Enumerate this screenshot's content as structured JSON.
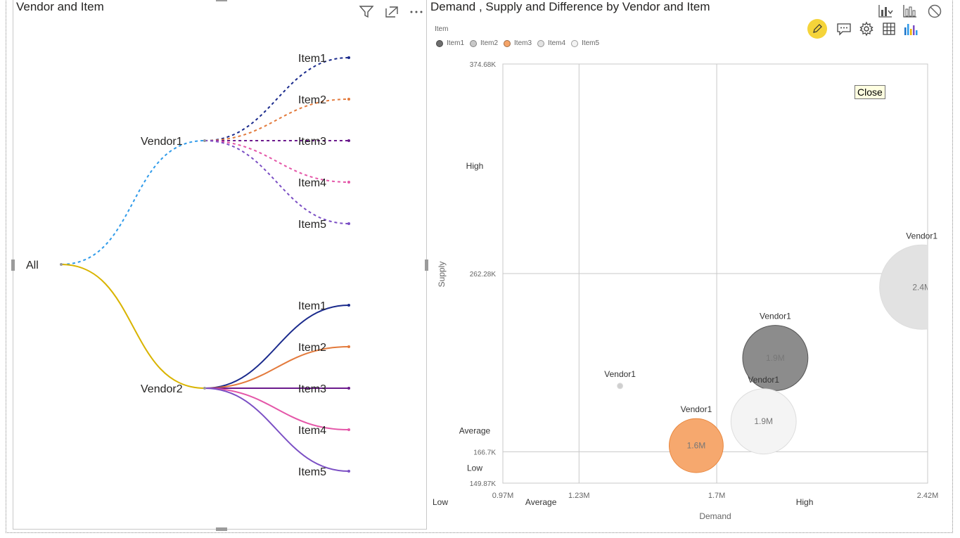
{
  "left": {
    "title": "Vendor and Item",
    "root_label": "All",
    "vendors": [
      {
        "label": "Vendor1",
        "color": "#2f9bea",
        "dashed": true,
        "items": [
          {
            "label": "Item1",
            "color": "#1a2a8c"
          },
          {
            "label": "Item2",
            "color": "#e37a3c"
          },
          {
            "label": "Item3",
            "color": "#6b1a8c"
          },
          {
            "label": "Item4",
            "color": "#e456a8"
          },
          {
            "label": "Item5",
            "color": "#7b4fc4"
          }
        ]
      },
      {
        "label": "Vendor2",
        "color": "#d9b400",
        "dashed": false,
        "items": [
          {
            "label": "Item1",
            "color": "#1a2a8c"
          },
          {
            "label": "Item2",
            "color": "#e37a3c"
          },
          {
            "label": "Item3",
            "color": "#6b1a8c"
          },
          {
            "label": "Item4",
            "color": "#e456a8"
          },
          {
            "label": "Item5",
            "color": "#7b4fc4"
          }
        ]
      }
    ],
    "icons": [
      "filter-icon",
      "focus-mode-icon",
      "more-options-icon"
    ]
  },
  "right": {
    "title": "Demand , Supply and Difference by Vendor and Item",
    "legend_title": "Item",
    "legend": [
      {
        "label": "Item1",
        "color": "#6e6e6e"
      },
      {
        "label": "Item2",
        "color": "#c8c8c8"
      },
      {
        "label": "Item3",
        "color": "#f5a468"
      },
      {
        "label": "Item4",
        "color": "#e3e3e3"
      },
      {
        "label": "Item5",
        "color": "#f3f3f3"
      }
    ],
    "tooltip": "Close",
    "toolbar_icons": [
      "drill-chart-icon",
      "column-chart-icon",
      "disable-icon"
    ],
    "edit_icons": [
      "edit-pencil-icon",
      "comment-icon",
      "settings-gear-icon",
      "table-grid-icon",
      "analytics-bars-icon"
    ]
  },
  "chart_data": {
    "type": "scatter",
    "title": "Demand , Supply and Difference by Vendor and Item",
    "xlabel": "Demand",
    "ylabel": "Supply",
    "xlim": [
      970000,
      2420000
    ],
    "ylim": [
      149870,
      374680
    ],
    "x_ticks": [
      {
        "value": 970000,
        "label": "0.97M"
      },
      {
        "value": 1230000,
        "label": "1.23M"
      },
      {
        "value": 1700000,
        "label": "1.7M"
      },
      {
        "value": 2420000,
        "label": "2.42M"
      }
    ],
    "y_ticks": [
      {
        "value": 374680,
        "label": "374.68K"
      },
      {
        "value": 262280,
        "label": "262.28K"
      },
      {
        "value": 166700,
        "label": "166.7K"
      },
      {
        "value": 149870,
        "label": "149.87K"
      }
    ],
    "x_bands": [
      {
        "label": "Low",
        "value": 970000
      },
      {
        "label": "Average",
        "value": 1100000
      },
      {
        "label": "High",
        "value": 2000000
      }
    ],
    "y_bands": [
      {
        "label": "High",
        "value": 320000
      },
      {
        "label": "Average",
        "value": 178000
      },
      {
        "label": "Low",
        "value": 158000
      }
    ],
    "points": [
      {
        "vendor": "Vendor1",
        "item": "Item1",
        "x": 1900000,
        "y": 217000,
        "size": 1900000,
        "label": "1.9M",
        "color": "#8c8c8c"
      },
      {
        "vendor": "Vendor1",
        "item": "Item2",
        "x": 1370000,
        "y": 202000,
        "size": 10000,
        "label": "",
        "color": "#cfcfcf"
      },
      {
        "vendor": "Vendor1",
        "item": "Item3",
        "x": 1630000,
        "y": 170000,
        "size": 1600000,
        "label": "1.6M",
        "color": "#f6a86e"
      },
      {
        "vendor": "Vendor1",
        "item": "Item4",
        "x": 2400000,
        "y": 255000,
        "size": 2400000,
        "label": "2.4M",
        "color": "#e2e2e2"
      },
      {
        "vendor": "Vendor1",
        "item": "Item5",
        "x": 1860000,
        "y": 183000,
        "size": 1900000,
        "label": "1.9M",
        "color": "#f4f4f4"
      }
    ]
  }
}
